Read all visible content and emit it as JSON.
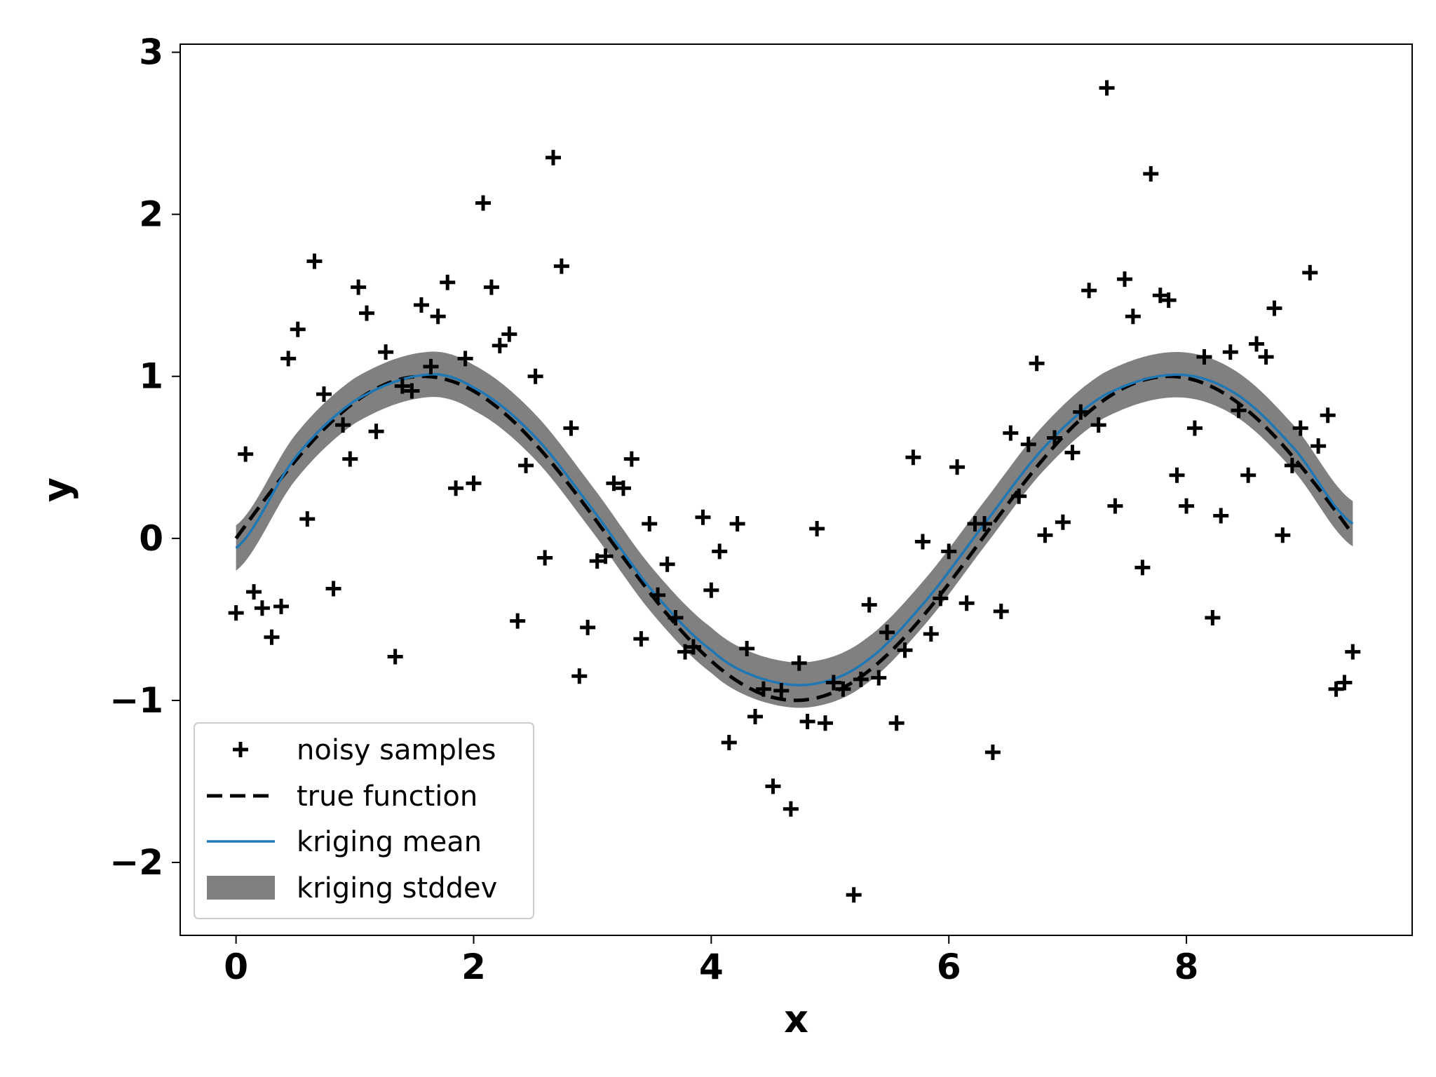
{
  "chart_data": {
    "type": "line",
    "xlabel": "x",
    "ylabel": "y",
    "xlim": [
      -0.47,
      9.9
    ],
    "ylim": [
      -2.45,
      3.05
    ],
    "xticks": [
      0,
      2,
      4,
      6,
      8
    ],
    "yticks": [
      -2,
      -1,
      0,
      1,
      2,
      3
    ],
    "ytick_labels": [
      "−2",
      "−1",
      "0",
      "1",
      "2",
      "3"
    ],
    "legend_placement": "lower-left",
    "grid": false,
    "colors": {
      "samples": "#000000",
      "true_function": "#000000",
      "kriging_mean": "#1f77b4",
      "kriging_stddev": "#808080"
    },
    "legend": [
      {
        "key": "samples",
        "label": "noisy samples"
      },
      {
        "key": "true",
        "label": "true function"
      },
      {
        "key": "mean",
        "label": "kriging mean"
      },
      {
        "key": "band",
        "label": "kriging stddev"
      }
    ],
    "true_function": {
      "name": "true function",
      "formula": "sin(x)",
      "x_range": [
        0,
        9.4
      ]
    },
    "kriging_mean": {
      "name": "kriging mean",
      "x": [
        0,
        0.5,
        1,
        1.6,
        2,
        2.5,
        3,
        3.5,
        4,
        4.4,
        4.85,
        5.3,
        5.8,
        6.3,
        6.8,
        7.3,
        7.9,
        8.4,
        8.9,
        9.4
      ],
      "y": [
        -0.06,
        0.5,
        0.85,
        1.01,
        0.93,
        0.64,
        0.18,
        -0.32,
        -0.69,
        -0.86,
        -0.9,
        -0.76,
        -0.39,
        0.09,
        0.56,
        0.88,
        1.01,
        0.9,
        0.56,
        0.09
      ]
    },
    "kriging_stddev": {
      "name": "kriging stddev",
      "halfwidth": 0.14
    },
    "samples": {
      "name": "noisy samples",
      "x": [
        0.0,
        0.08,
        0.15,
        0.22,
        0.3,
        0.38,
        0.44,
        0.52,
        0.6,
        0.66,
        0.74,
        0.82,
        0.9,
        0.96,
        1.03,
        1.1,
        1.18,
        1.26,
        1.34,
        1.4,
        1.48,
        1.56,
        1.64,
        1.7,
        1.78,
        1.85,
        1.93,
        2.0,
        2.08,
        2.15,
        2.22,
        2.3,
        2.37,
        2.44,
        2.52,
        2.6,
        2.67,
        2.74,
        2.82,
        2.89,
        2.96,
        3.04,
        3.11,
        3.18,
        3.26,
        3.33,
        3.41,
        3.48,
        3.55,
        3.63,
        3.7,
        3.78,
        3.85,
        3.93,
        4.0,
        4.07,
        4.15,
        4.22,
        4.3,
        4.37,
        4.44,
        4.52,
        4.59,
        4.67,
        4.74,
        4.81,
        4.89,
        4.96,
        5.03,
        5.11,
        5.2,
        5.26,
        5.33,
        5.41,
        5.48,
        5.56,
        5.63,
        5.7,
        5.78,
        5.85,
        5.93,
        6.0,
        6.07,
        6.15,
        6.22,
        6.3,
        6.37,
        6.44,
        6.52,
        6.59,
        6.67,
        6.74,
        6.81,
        6.89,
        6.96,
        7.04,
        7.11,
        7.18,
        7.26,
        7.33,
        7.4,
        7.48,
        7.55,
        7.63,
        7.7,
        7.78,
        7.85,
        7.92,
        8.0,
        8.07,
        8.15,
        8.22,
        8.29,
        8.37,
        8.44,
        8.52,
        8.59,
        8.67,
        8.74,
        8.81,
        8.89,
        8.96,
        9.04,
        9.11,
        9.19,
        9.26,
        9.33,
        9.4
      ],
      "y": [
        -0.46,
        0.52,
        -0.33,
        -0.43,
        -0.61,
        -0.42,
        1.11,
        1.29,
        0.12,
        1.71,
        0.89,
        -0.31,
        0.7,
        0.49,
        1.55,
        1.39,
        0.66,
        1.15,
        -0.73,
        0.94,
        0.91,
        1.44,
        1.06,
        1.37,
        1.58,
        0.31,
        1.11,
        0.34,
        2.07,
        1.55,
        1.19,
        1.26,
        -0.51,
        0.45,
        1.0,
        -0.12,
        2.35,
        1.68,
        0.68,
        -0.85,
        -0.55,
        -0.14,
        -0.11,
        0.34,
        0.31,
        0.49,
        -0.62,
        0.09,
        -0.35,
        -0.16,
        -0.49,
        -0.7,
        -0.67,
        0.13,
        -0.32,
        -0.08,
        -1.26,
        0.09,
        -0.68,
        -1.1,
        -0.93,
        -1.53,
        -0.94,
        -1.67,
        -0.77,
        -1.13,
        0.06,
        -1.14,
        -0.89,
        -0.93,
        -2.2,
        -0.87,
        -0.41,
        -0.86,
        -0.58,
        -1.14,
        -0.69,
        0.5,
        -0.02,
        -0.59,
        -0.37,
        -0.08,
        0.44,
        -0.4,
        0.09,
        0.09,
        -1.32,
        -0.45,
        0.65,
        0.26,
        0.58,
        1.08,
        0.02,
        0.62,
        0.1,
        0.53,
        0.78,
        1.53,
        0.7,
        2.78,
        0.2,
        1.6,
        1.37,
        -0.18,
        2.25,
        1.5,
        1.47,
        0.39,
        0.2,
        0.68,
        1.12,
        -0.49,
        0.14,
        1.15,
        0.79,
        0.39,
        1.2,
        1.12,
        1.42,
        0.02,
        0.45,
        0.68,
        1.64,
        0.57,
        0.76,
        -0.93,
        -0.89,
        -0.7
      ]
    }
  }
}
